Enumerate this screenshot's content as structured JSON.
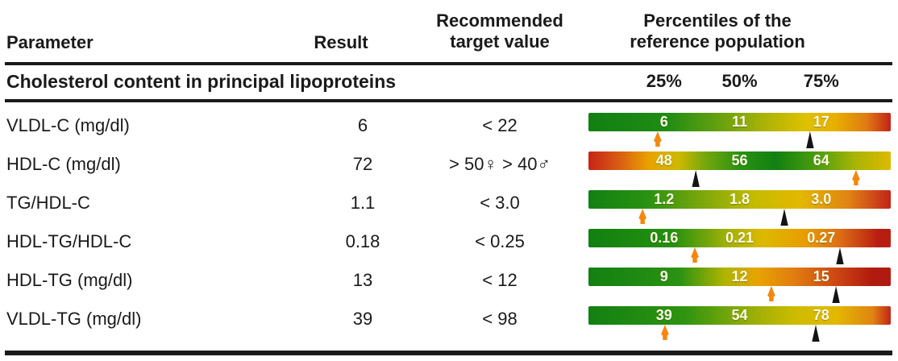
{
  "header": {
    "parameter": "Parameter",
    "result": "Result",
    "target_line1": "Recommended",
    "target_line2": "target value",
    "percentiles_line1": "Percentiles of the",
    "percentiles_line2": "reference population"
  },
  "section": {
    "title": "Cholesterol content in principal lipoproteins",
    "ticks": [
      "25%",
      "50%",
      "75%"
    ]
  },
  "rows": [
    {
      "name": "VLDL-C (mg/dl)",
      "result": "6",
      "target": "< 22",
      "p25": "6",
      "p50": "11",
      "p75": "17",
      "orange_pos": 22.9,
      "black_pos": 73.3
    },
    {
      "name": "HDL-C (mg/dl)",
      "result": "72",
      "target": "> 50♀ > 40♂",
      "p25": "48",
      "p50": "56",
      "p75": "64",
      "orange_pos": 88.5,
      "black_pos": 35.5
    },
    {
      "name": "TG/HDL-C",
      "result": "1.1",
      "target": "< 3.0",
      "p25": "1.2",
      "p50": "1.8",
      "p75": "3.0",
      "orange_pos": 17.9,
      "black_pos": 64.8
    },
    {
      "name": "HDL-TG/HDL-C",
      "result": "0.18",
      "target": "< 0.25",
      "p25": "0.16",
      "p50": "0.21",
      "p75": "0.27",
      "orange_pos": 35.2,
      "black_pos": 83.2
    },
    {
      "name": "HDL-TG (mg/dl)",
      "result": "13",
      "target": "< 12",
      "p25": "9",
      "p50": "12",
      "p75": "15",
      "orange_pos": 60.5,
      "black_pos": 81.9
    },
    {
      "name": "VLDL-TG (mg/dl)",
      "result": "39",
      "target": "< 98",
      "p25": "39",
      "p50": "54",
      "p75": "78",
      "orange_pos": 25.3,
      "black_pos": 75.2
    }
  ],
  "colors": {
    "text": "#1a1a1a",
    "marker_orange": "#f5870f",
    "marker_black": "#141414",
    "scale_green": "#128012",
    "scale_yellow": "#e3b800",
    "scale_orange": "#e07d10",
    "scale_red": "#c22418"
  },
  "chart_data": {
    "type": "table",
    "title": "Cholesterol content in principal lipoproteins",
    "columns": [
      "Parameter",
      "Result",
      "Recommended target value",
      "Percentiles of the reference population (25% / 50% / 75%)"
    ],
    "legend": {
      "orange_arrow": "orange position marker under scale bar",
      "black_arrow": "black position marker under scale bar"
    },
    "rows": [
      {
        "parameter": "VLDL-C (mg/dl)",
        "result": 6,
        "target": "< 22",
        "percentile_25": 6,
        "percentile_50": 11,
        "percentile_75": 17,
        "scale_gradient": "green-to-red",
        "orange_marker_pct": 22.9,
        "black_marker_pct": 73.3
      },
      {
        "parameter": "HDL-C (mg/dl)",
        "result": 72,
        "target": "> 50♀ > 40♂",
        "percentile_25": 48,
        "percentile_50": 56,
        "percentile_75": 64,
        "scale_gradient": "red-to-green-to-yellow",
        "orange_marker_pct": 88.5,
        "black_marker_pct": 35.5
      },
      {
        "parameter": "TG/HDL-C",
        "result": 1.1,
        "target": "< 3.0",
        "percentile_25": 1.2,
        "percentile_50": 1.8,
        "percentile_75": 3.0,
        "scale_gradient": "green-to-red",
        "orange_marker_pct": 17.9,
        "black_marker_pct": 64.8
      },
      {
        "parameter": "HDL-TG/HDL-C",
        "result": 0.18,
        "target": "< 0.25",
        "percentile_25": 0.16,
        "percentile_50": 0.21,
        "percentile_75": 0.27,
        "scale_gradient": "green-to-red",
        "orange_marker_pct": 35.2,
        "black_marker_pct": 83.2
      },
      {
        "parameter": "HDL-TG (mg/dl)",
        "result": 13,
        "target": "< 12",
        "percentile_25": 9,
        "percentile_50": 12,
        "percentile_75": 15,
        "scale_gradient": "green-to-red",
        "orange_marker_pct": 60.5,
        "black_marker_pct": 81.9
      },
      {
        "parameter": "VLDL-TG (mg/dl)",
        "result": 39,
        "target": "< 98",
        "percentile_25": 39,
        "percentile_50": 54,
        "percentile_75": 78,
        "scale_gradient": "green-to-red",
        "orange_marker_pct": 25.3,
        "black_marker_pct": 75.2
      }
    ]
  }
}
